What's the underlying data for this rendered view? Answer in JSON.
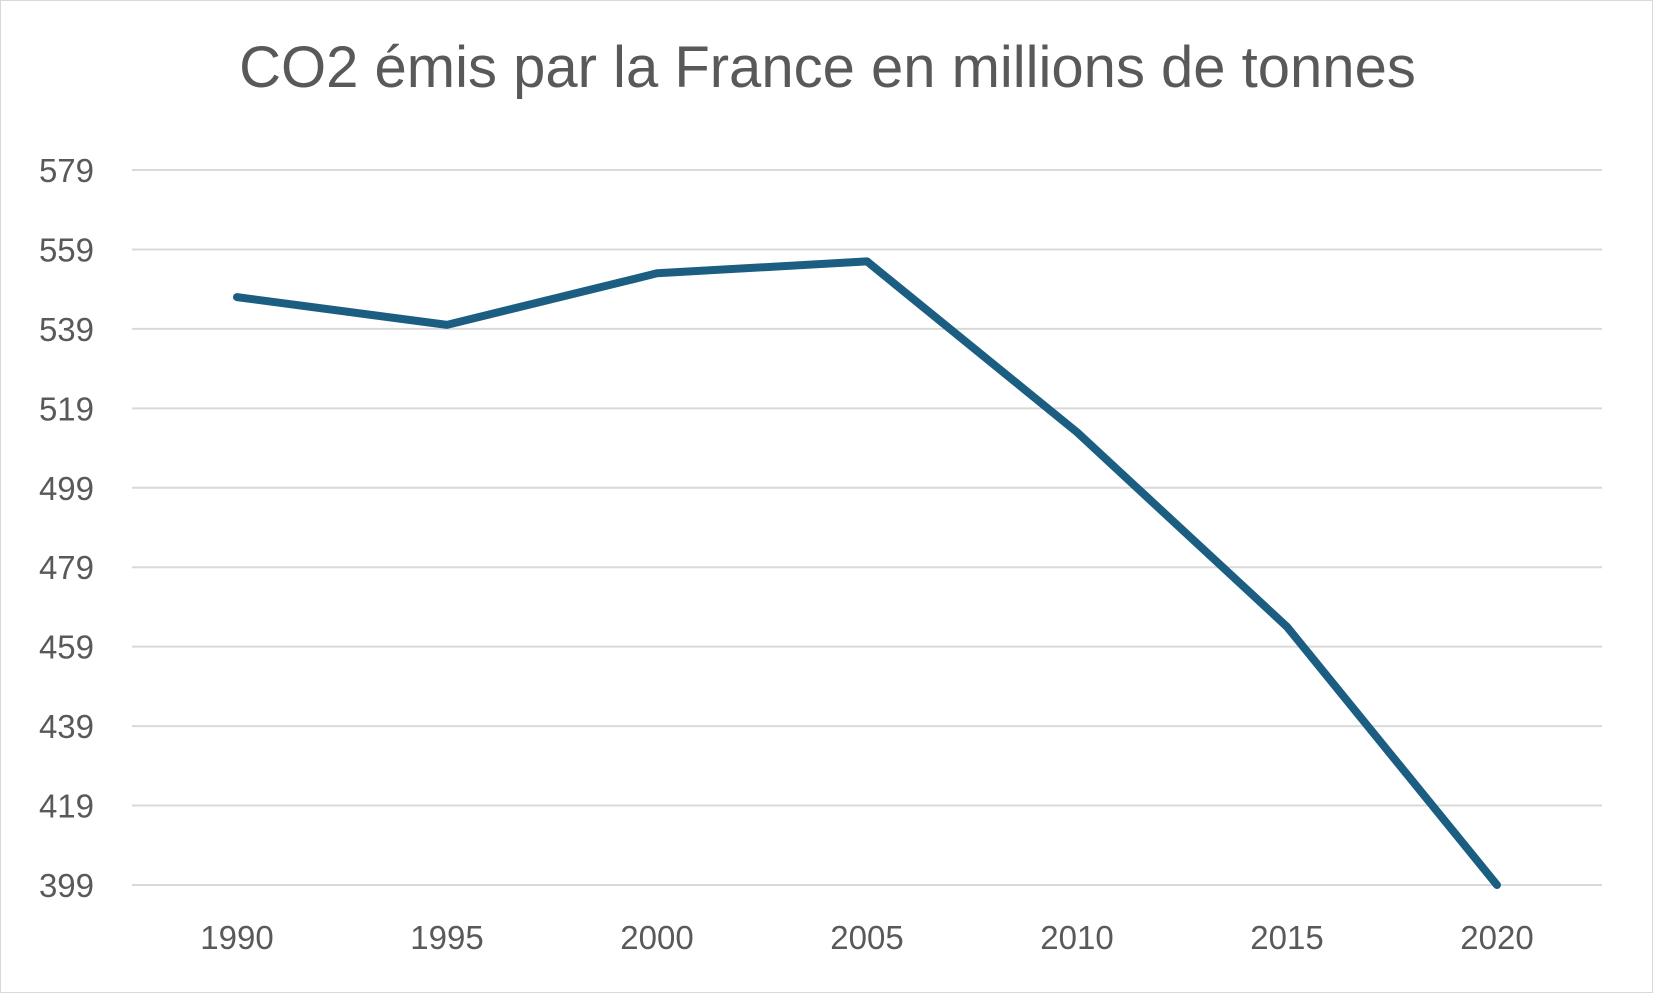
{
  "chart_data": {
    "type": "line",
    "title": "CO2 émis par la France en millions de tonnes",
    "xlabel": "",
    "ylabel": "",
    "categories": [
      "1990",
      "1995",
      "2000",
      "2005",
      "2010",
      "2015",
      "2020"
    ],
    "series": [
      {
        "values": [
          547,
          540,
          553,
          556,
          513,
          464,
          399
        ],
        "color": "#1b5e82"
      }
    ],
    "ylim": [
      399,
      579
    ],
    "yticks": [
      "399",
      "419",
      "439",
      "459",
      "479",
      "499",
      "519",
      "539",
      "559",
      "579"
    ],
    "grid": true,
    "legend": "none",
    "gridline_color": "#d9d9d9",
    "text_color": "#595959"
  }
}
